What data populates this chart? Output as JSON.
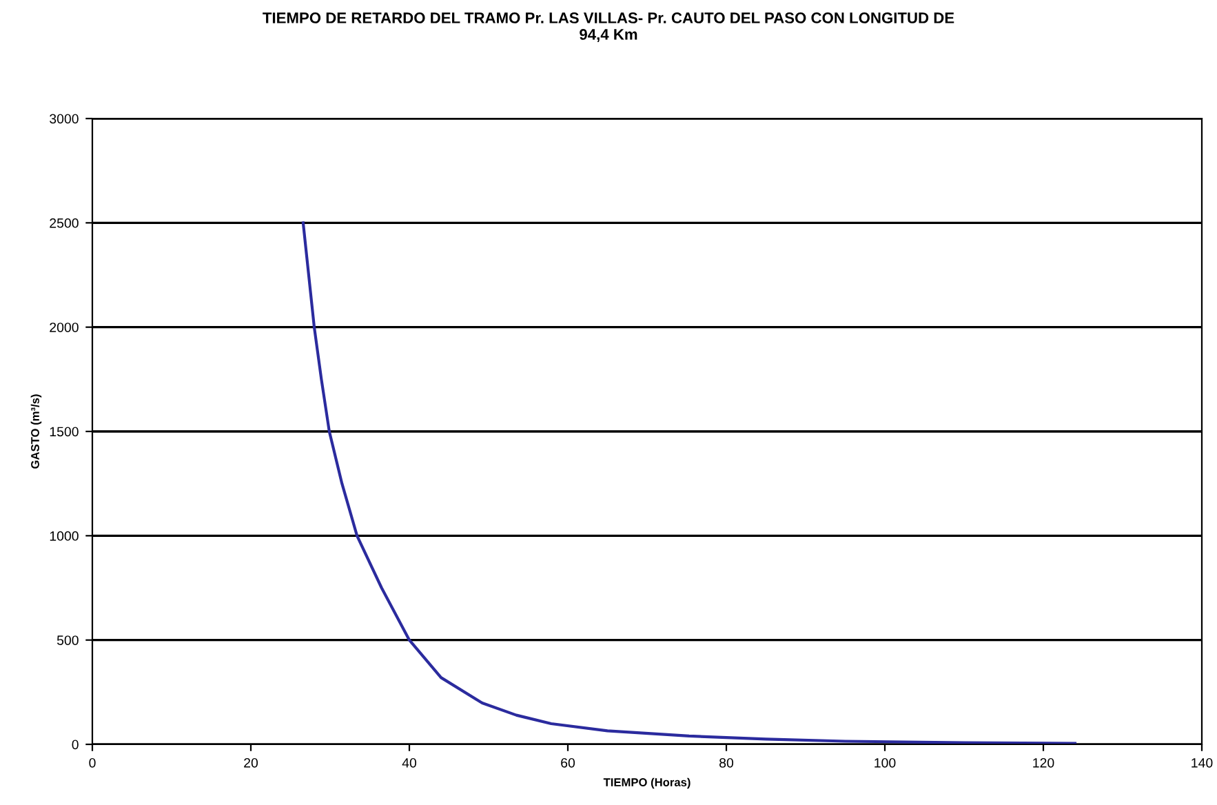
{
  "chart_data": {
    "type": "line",
    "title": "TIEMPO DE RETARDO DEL TRAMO Pr. LAS VILLAS- Pr. CAUTO DEL PASO CON LONGITUD DE\n94,4 Km",
    "xlabel": "TIEMPO (Horas)",
    "ylabel": "GASTO (m³/s)",
    "series": [
      {
        "color": "#2b2b9e",
        "x": [
          26.6,
          27.3,
          28.0,
          28.9,
          29.9,
          31.5,
          33.4,
          36.5,
          40.0,
          44.0,
          49.2,
          53.5,
          57.9,
          65.0,
          75.3,
          85.0,
          95.0,
          110.0,
          124.0
        ],
        "values": [
          2500,
          2250,
          2000,
          1750,
          1500,
          1250,
          1000,
          750,
          500,
          320,
          198,
          140,
          99,
          65,
          40,
          25,
          15,
          8,
          5
        ]
      }
    ],
    "xlim": [
      0,
      140
    ],
    "ylim": [
      0,
      3000
    ],
    "xticks": [
      0,
      20,
      40,
      60,
      80,
      100,
      120,
      140
    ],
    "yticks": [
      0,
      500,
      1000,
      1500,
      2000,
      2500,
      3000
    ],
    "grid": "y",
    "marker": "none",
    "line_style": "solid"
  }
}
